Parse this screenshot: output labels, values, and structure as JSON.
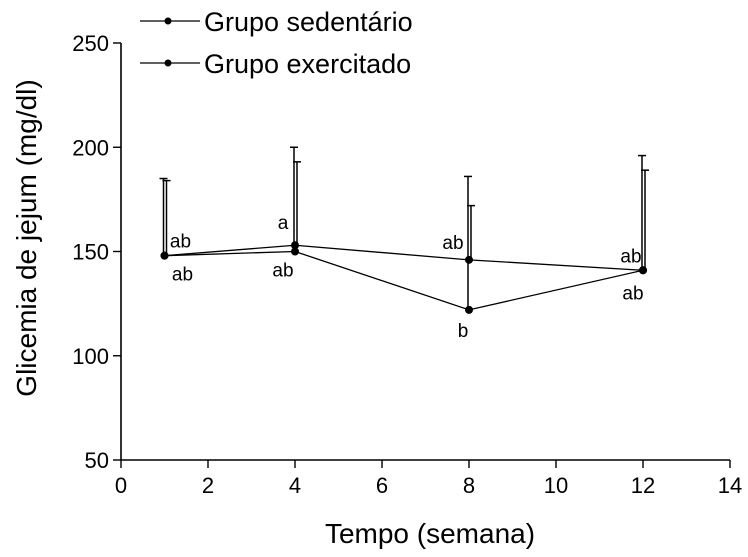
{
  "chart_data": {
    "type": "line",
    "xlabel": "Tempo (semana)",
    "ylabel": "Glicemia de jejum (mg/dl)",
    "xlim": [
      0,
      14
    ],
    "ylim": [
      50,
      250
    ],
    "xticks": [
      "0",
      "2",
      "4",
      "6",
      "8",
      "10",
      "12",
      "14"
    ],
    "yticks": [
      "50",
      "100",
      "150",
      "200",
      "250"
    ],
    "grid": false,
    "legend_position": "top-left",
    "series": [
      {
        "name": "Grupo sedentário",
        "x": [
          1,
          4,
          8,
          12
        ],
        "y": [
          148,
          150,
          122,
          141
        ],
        "error": [
          37,
          50,
          64,
          55
        ],
        "labels": [
          "ab",
          "ab",
          "b",
          "ab"
        ]
      },
      {
        "name": "Grupo exercitado",
        "x": [
          1,
          4,
          8,
          12
        ],
        "y": [
          148,
          153,
          146,
          141
        ],
        "error": [
          36,
          40,
          26,
          48
        ],
        "labels": [
          "ab",
          "a",
          "ab",
          "ab"
        ]
      }
    ]
  }
}
